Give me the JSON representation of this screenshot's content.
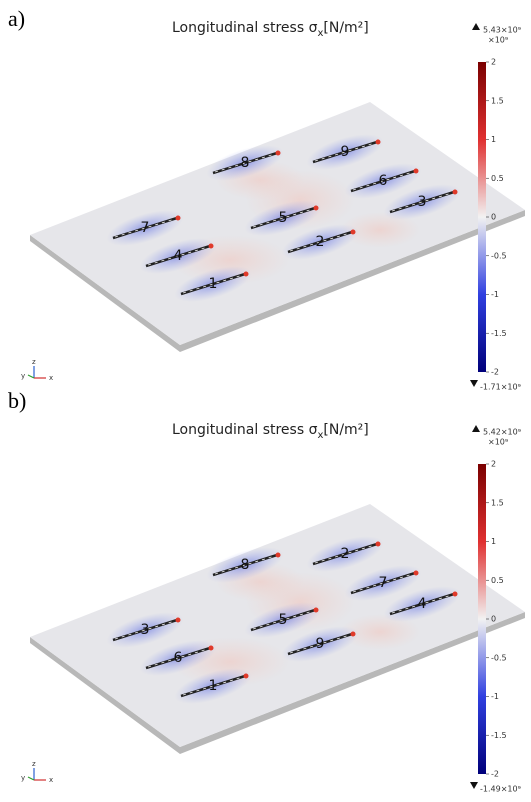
{
  "panels": [
    {
      "label": "a)",
      "title": "Longitudinal stress σ",
      "title_subscript": "x",
      "title_unit": "[N/m²]",
      "colorbar": {
        "max": "5.43×10⁹",
        "exponent": "×10⁹",
        "ticks": [
          "2",
          "1.5",
          "1",
          "0.5",
          "0",
          "-0.5",
          "-1",
          "-1.5",
          "-2"
        ],
        "min": "-1.71×10⁹"
      },
      "cracks": [
        "7",
        "4",
        "1",
        "8",
        "5",
        "2",
        "9",
        "6",
        "3"
      ],
      "axes": {
        "y": "y",
        "z": "z",
        "x": "x"
      }
    },
    {
      "label": "b)",
      "title": "Longitudinal stress σ",
      "title_subscript": "x",
      "title_unit": "[N/m²]",
      "colorbar": {
        "max": "5.42×10⁹",
        "exponent": "×10⁹",
        "ticks": [
          "2",
          "1.5",
          "1",
          "0.5",
          "0",
          "-0.5",
          "-1",
          "-1.5",
          "-2"
        ],
        "min": "-1.49×10⁹"
      },
      "cracks": [
        "3",
        "6",
        "1",
        "8",
        "5",
        "9",
        "2",
        "7",
        "4"
      ],
      "axes": {
        "y": "y",
        "z": "z",
        "x": "x"
      }
    }
  ]
}
